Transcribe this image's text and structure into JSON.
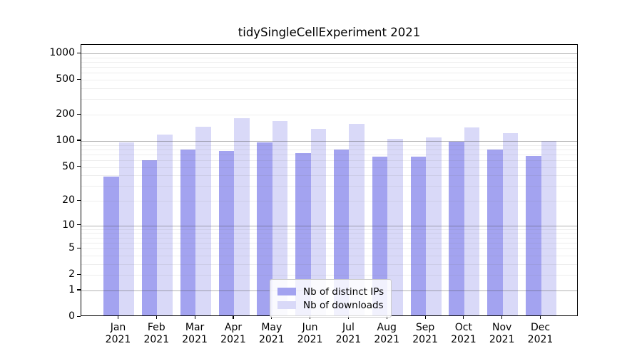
{
  "title": "tidySingleCellExperiment 2021",
  "chart_data": {
    "type": "bar",
    "title": "tidySingleCellExperiment 2021",
    "categories": [
      "Jan 2021",
      "Feb 2021",
      "Mar 2021",
      "Apr 2021",
      "May 2021",
      "Jun 2021",
      "Jul 2021",
      "Aug 2021",
      "Sep 2021",
      "Oct 2021",
      "Nov 2021",
      "Dec 2021"
    ],
    "x_tick_months": [
      "Jan",
      "Feb",
      "Mar",
      "Apr",
      "May",
      "Jun",
      "Jul",
      "Aug",
      "Sep",
      "Oct",
      "Nov",
      "Dec"
    ],
    "x_tick_year": "2021",
    "series": [
      {
        "name": "Nb of distinct IPs",
        "color": "#a3a3f0",
        "values": [
          37,
          58,
          76,
          74,
          92,
          70,
          76,
          63,
          63,
          95,
          77,
          65
        ]
      },
      {
        "name": "Nb of downloads",
        "color": "#d9d9f8",
        "values": [
          93,
          114,
          140,
          174,
          162,
          132,
          152,
          102,
          106,
          138,
          119,
          97
        ]
      }
    ],
    "y_ticks": [
      0,
      1,
      2,
      5,
      10,
      20,
      50,
      100,
      200,
      500,
      1000
    ],
    "y_scale": "log10(value+1)",
    "ylim": [
      0,
      1240
    ],
    "xlabel": "",
    "ylabel": "",
    "grid": "decade gridlines dark, minor 2-9 per decade faint, drawn over bars",
    "legend_position": "lower-center"
  }
}
